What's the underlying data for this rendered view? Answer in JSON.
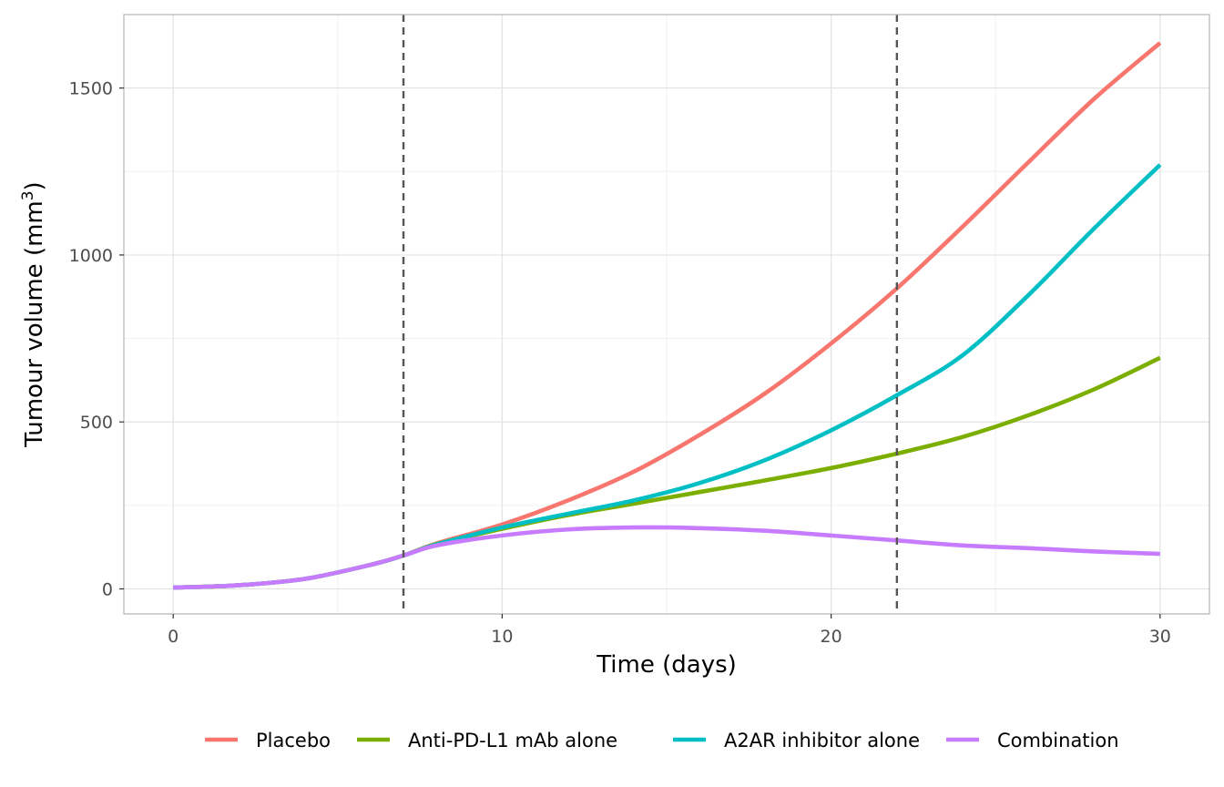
{
  "chart_data": {
    "type": "line",
    "xlabel": "Time (days)",
    "ylabel": "Tumour volume (mm",
    "ylabel_superscript": "3",
    "ylabel_suffix": ")",
    "xlim": [
      -1.5,
      31.5
    ],
    "ylim": [
      -75,
      1720
    ],
    "x_ticks": [
      0,
      10,
      20,
      30
    ],
    "y_ticks": [
      0,
      500,
      1000,
      1500
    ],
    "x_tick_labels": [
      "0",
      "10",
      "20",
      "30"
    ],
    "y_tick_labels": [
      "0",
      "500",
      "1000",
      "1500"
    ],
    "x_minor_ticks": [
      5,
      15,
      25
    ],
    "y_minor_ticks": [
      250,
      750,
      1250
    ],
    "grid": true,
    "legend_position": "bottom",
    "vlines": [
      7,
      22
    ],
    "x": [
      0,
      2,
      4,
      6,
      7,
      8,
      10,
      12,
      14,
      16,
      18,
      20,
      22,
      24,
      26,
      28,
      30
    ],
    "series": [
      {
        "name": "Placebo",
        "color": "#F8766D",
        "values": [
          4,
          11,
          30,
          72,
          100,
          136,
          193,
          265,
          351,
          461,
          586,
          735,
          900,
          1085,
          1278,
          1468,
          1635
        ]
      },
      {
        "name": "Anti-PD-L1 mAb alone",
        "color": "#7CAE00",
        "values": [
          4,
          11,
          30,
          72,
          100,
          134,
          180,
          221,
          255,
          290,
          325,
          362,
          405,
          455,
          520,
          598,
          692
        ]
      },
      {
        "name": "A2AR inhibitor alone",
        "color": "#00BFC4",
        "values": [
          4,
          11,
          30,
          72,
          100,
          133,
          184,
          225,
          265,
          317,
          386,
          475,
          580,
          700,
          880,
          1080,
          1270
        ]
      },
      {
        "name": "Combination",
        "color": "#C77CFF",
        "values": [
          4,
          11,
          30,
          72,
          100,
          130,
          160,
          178,
          184,
          182,
          174,
          160,
          145,
          130,
          122,
          112,
          105
        ]
      }
    ]
  }
}
